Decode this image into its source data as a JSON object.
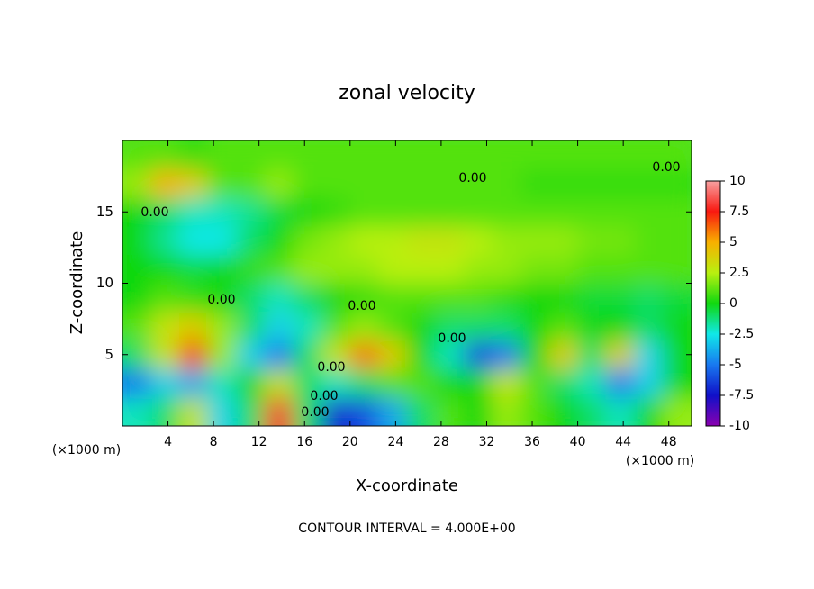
{
  "chart_data": {
    "type": "heatmap",
    "title": "zonal velocity",
    "x_label": "X-coordinate",
    "y_label": "Z-coordinate",
    "x_unit": "(×1000 m)",
    "footer": "CONTOUR INTERVAL = 4.000E+00",
    "contour_label": "0.00",
    "xlim": [
      0,
      50
    ],
    "ylim": [
      0,
      20
    ],
    "xticks": [
      4,
      8,
      12,
      16,
      20,
      24,
      28,
      32,
      36,
      40,
      44,
      48
    ],
    "yticks": [
      5,
      10,
      15
    ],
    "x": [
      1.25,
      3.75,
      6.25,
      8.75,
      11.25,
      13.75,
      16.25,
      18.75,
      21.25,
      23.75,
      26.25,
      28.75,
      31.25,
      33.75,
      36.25,
      38.75,
      41.25,
      43.75,
      46.25,
      48.75
    ],
    "y": [
      1,
      3,
      5,
      7,
      9,
      11,
      13,
      15,
      17,
      19
    ],
    "values": [
      [
        -2,
        -1,
        3,
        -3,
        -1,
        8,
        -1,
        -7,
        -6,
        -4,
        -1,
        1,
        0,
        2,
        1,
        0,
        -1,
        -2,
        0,
        2
      ],
      [
        -5,
        -3,
        -4,
        -2,
        0,
        3,
        -1,
        -2,
        -1,
        1,
        1,
        0,
        0,
        3,
        1,
        -1,
        -2,
        -5,
        -3,
        0
      ],
      [
        -1,
        3,
        7,
        2,
        -3,
        -5,
        -1,
        3,
        6,
        4,
        0,
        -2,
        -6,
        -5,
        0,
        4,
        -1,
        4,
        -3,
        0
      ],
      [
        1,
        3,
        4,
        2,
        -1,
        -3,
        -2,
        1,
        2,
        1,
        0,
        -1,
        -1,
        -1,
        0,
        1,
        0,
        0,
        -1,
        0
      ],
      [
        0,
        1,
        0.5,
        0,
        -1,
        -2,
        -1,
        0,
        0.5,
        1,
        1,
        1,
        1,
        0.5,
        0,
        0,
        -0.5,
        -0.5,
        -1,
        -0.5
      ],
      [
        0,
        0,
        -0.5,
        0,
        0.5,
        1,
        2,
        2,
        2,
        2.5,
        2.5,
        2.5,
        2,
        2,
        1.5,
        1.5,
        1,
        1,
        1,
        1
      ],
      [
        0,
        -1.5,
        -2.5,
        -2.5,
        -1,
        0,
        1.5,
        2,
        2.5,
        2.5,
        3,
        3,
        2.5,
        2,
        2,
        2,
        1.5,
        1.5,
        1,
        1
      ],
      [
        0,
        -1,
        -2,
        -2,
        -1.5,
        -0.5,
        0,
        0.5,
        1,
        1,
        1,
        1,
        1,
        1,
        1,
        1,
        1,
        1,
        1,
        1
      ],
      [
        2,
        5,
        4,
        1,
        1,
        2,
        1,
        1,
        1,
        1,
        1,
        1,
        1,
        1,
        0.5,
        0.5,
        0.5,
        0.5,
        0.5,
        0.5
      ],
      [
        1,
        1,
        0.5,
        1,
        1,
        1,
        1,
        1,
        1,
        1,
        1,
        1,
        1,
        1,
        1,
        1,
        1,
        1,
        1,
        1
      ]
    ],
    "zlim": [
      -10,
      10
    ],
    "colorbar_ticks": [
      -10,
      -7.5,
      -5,
      -2.5,
      0,
      2.5,
      5,
      7.5,
      10
    ],
    "colorscale": [
      "#8a00b0",
      "#1010c8",
      "#1878f0",
      "#10e8e8",
      "#10d810",
      "#b8f010",
      "#f8b000",
      "#f81810",
      "#f8a0a0"
    ]
  }
}
